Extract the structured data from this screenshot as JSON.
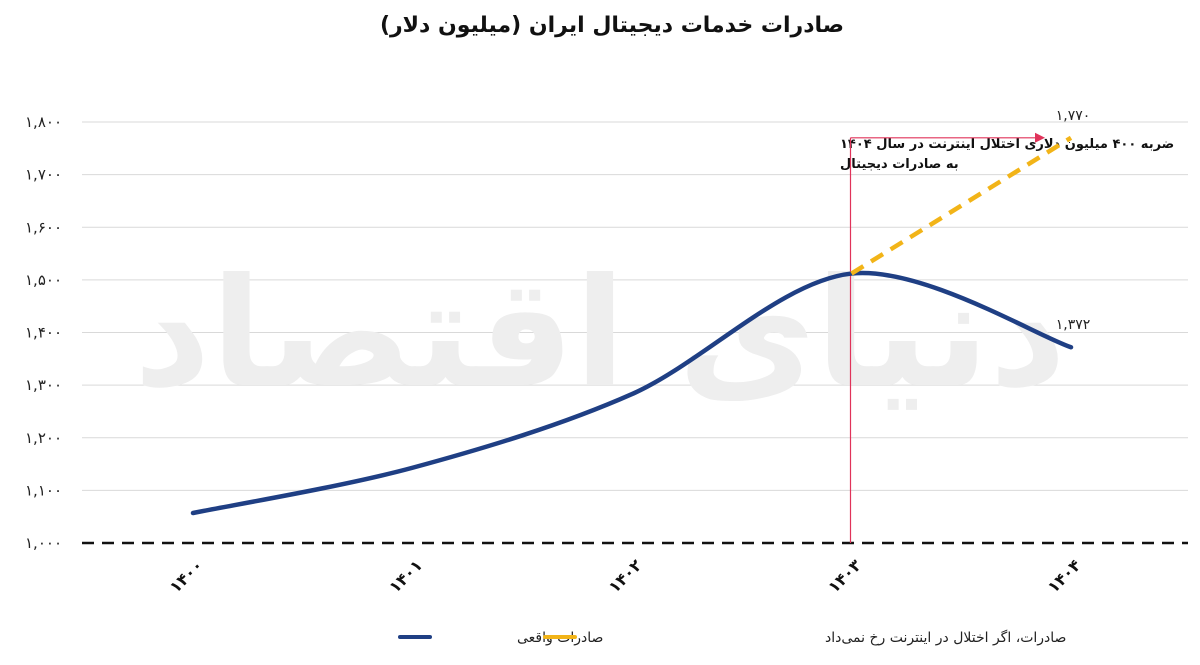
{
  "chart_data": {
    "type": "line",
    "title": "صادرات خدمات دیجیتال ایران (میلیون دلار)",
    "watermark": "دنیای اقتصاد",
    "categories": [
      "۱۴۰۰",
      "۱۴۰۱",
      "۱۴۰۲",
      "۱۴۰۳",
      "۱۴۰۴"
    ],
    "ylim": [
      1000,
      1800
    ],
    "y_ticks": [
      1000,
      1100,
      1200,
      1300,
      1400,
      1500,
      1600,
      1700,
      1800
    ],
    "y_tick_labels": [
      "۱,۰۰۰",
      "۱,۱۰۰",
      "۱,۲۰۰",
      "۱,۳۰۰",
      "۱,۴۰۰",
      "۱,۵۰۰",
      "۱,۶۰۰",
      "۱,۷۰۰",
      "۱,۸۰۰"
    ],
    "grid": true,
    "legend_position": "bottom",
    "series": [
      {
        "name": "صادرات واقعی",
        "color": "#1f3f84",
        "style": "solid",
        "values": [
          1057,
          1143,
          1283,
          1512,
          1372
        ],
        "end_label": "۱,۳۷۲"
      },
      {
        "name": "صادرات، اگر اختلال در اینترنت رخ نمی‌داد",
        "color": "#f2b418",
        "style": "dashed",
        "values": [
          null,
          null,
          null,
          1512,
          1770
        ],
        "end_label": "۱,۷۷۰"
      }
    ],
    "annotation": {
      "text": "ضربه ۴۰۰ میلیون دلاری اختلال اینترنت در سال ۱۴۰۴ به صادرات دیجیتال",
      "color": "#e0335a"
    }
  }
}
